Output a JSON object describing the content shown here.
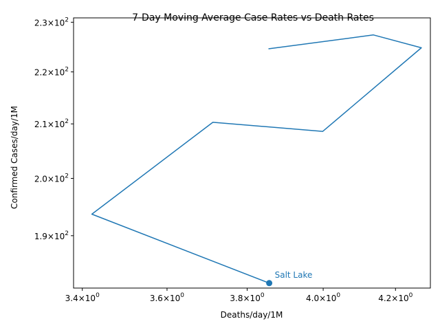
{
  "chart_data": {
    "type": "line",
    "title": "7-Day Moving Average Case Rates vs Death Rates",
    "xlabel": "Deaths/day/1M",
    "ylabel": "Confirmed Cases/day/1M",
    "xscale": "log",
    "yscale": "log",
    "xlim": [
      3.38,
      4.3
    ],
    "ylim": [
      181.3,
      230.9
    ],
    "grid": false,
    "legend": "none",
    "color": "#1f77b4",
    "x_ticks": [
      {
        "value": 3.4,
        "base": "3.4",
        "exp": "0"
      },
      {
        "value": 3.6,
        "base": "3.6",
        "exp": "0"
      },
      {
        "value": 3.8,
        "base": "3.8",
        "exp": "0"
      },
      {
        "value": 4.0,
        "base": "4.0",
        "exp": "0"
      },
      {
        "value": 4.2,
        "base": "4.2",
        "exp": "0"
      }
    ],
    "y_ticks": [
      {
        "value": 190,
        "base": "1.9",
        "exp": "2"
      },
      {
        "value": 200,
        "base": "2.0",
        "exp": "2"
      },
      {
        "value": 210,
        "base": "2.1",
        "exp": "2"
      },
      {
        "value": 220,
        "base": "2.2",
        "exp": "2"
      },
      {
        "value": 230,
        "base": "2.3",
        "exp": "2"
      }
    ],
    "series": [
      {
        "x": [
          3.855,
          4.138,
          4.274,
          3.999,
          3.713,
          3.422,
          3.857
        ],
        "y": [
          224.6,
          227.4,
          224.8,
          208.6,
          210.3,
          193.7,
          182.1
        ]
      }
    ],
    "annotation": {
      "label": "Salt Lake",
      "x": 3.857,
      "y": 182.1
    }
  }
}
